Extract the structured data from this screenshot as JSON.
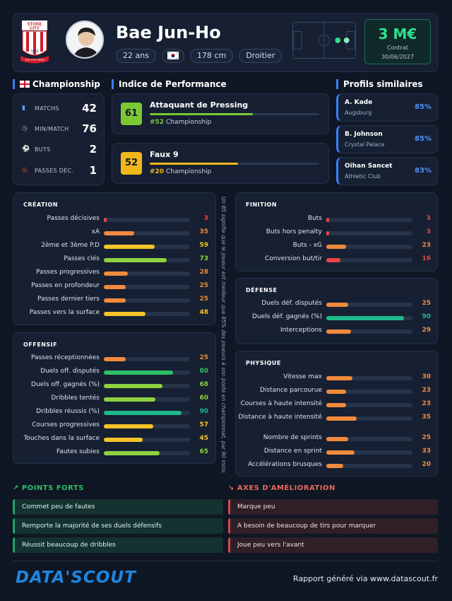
{
  "header": {
    "club_badge_text": "STOKE CITY",
    "club_badge_year": "1863",
    "club_badge_banner": "THE POTTERS",
    "player_name": "Bae Jun-Ho",
    "age": "22 ans",
    "nationality_flag": "south-korea-flag",
    "height": "178 cm",
    "foot": "Droitier",
    "market_value": "3 M€",
    "contract_label": "Contrat",
    "contract_date": "30/06/2027"
  },
  "league_stats": {
    "title": "Championship",
    "items": [
      {
        "icon": "shirt-icon",
        "label": "MATCHS",
        "value": "42"
      },
      {
        "icon": "clock-icon",
        "label": "MIN/MATCH",
        "value": "76"
      },
      {
        "icon": "ball-icon",
        "label": "BUTS",
        "value": "2"
      },
      {
        "icon": "target-icon",
        "label": "PASSES DÉC.",
        "value": "1"
      }
    ]
  },
  "performance": {
    "title": "Indice de Performance",
    "items": [
      {
        "score": "61",
        "title": "Attaquant de Pressing",
        "level": 0.61,
        "rank": "#52",
        "league": "Championship",
        "color": "#7cc734"
      },
      {
        "score": "52",
        "title": "Faux 9",
        "level": 0.52,
        "rank": "#20",
        "league": "Championship",
        "color": "#f2b81a"
      }
    ]
  },
  "similar": {
    "title": "Profils similaires",
    "items": [
      {
        "name": "A. Kade",
        "club": "Augsburg",
        "pct": "85%"
      },
      {
        "name": "B. Johnson",
        "club": "Crystal Palace",
        "pct": "85%"
      },
      {
        "name": "Oihan Sancet",
        "club": "Athletic Club",
        "pct": "83%"
      }
    ]
  },
  "creation": {
    "title": "CRÉATION",
    "items": [
      {
        "label": "Passes décisives",
        "value": "3"
      },
      {
        "label": "xA",
        "value": "35"
      },
      {
        "label": "2ème et 3ème P.D",
        "value": "59"
      },
      {
        "label": "Passes clés",
        "value": "73"
      },
      {
        "label": "Passes progressives",
        "value": "28"
      },
      {
        "label": "Passes en profondeur",
        "value": "25"
      },
      {
        "label": "Passes dernier tiers",
        "value": "25"
      },
      {
        "label": "Passes vers la surface",
        "value": "48"
      }
    ]
  },
  "offensif": {
    "title": "OFFENSIF",
    "items": [
      {
        "label": "Passes réceptionnées",
        "value": "25"
      },
      {
        "label": "Duels off. disputés",
        "value": "80"
      },
      {
        "label": "Duels off. gagnés (%)",
        "value": "68"
      },
      {
        "label": "Dribbles tentés",
        "value": "60"
      },
      {
        "label": "Dribbles réussis (%)",
        "value": "90"
      },
      {
        "label": "Courses progressives",
        "value": "57"
      },
      {
        "label": "Touches dans la surface",
        "value": "45"
      },
      {
        "label": "Fautes subies",
        "value": "65"
      }
    ]
  },
  "finition": {
    "title": "FINITION",
    "items": [
      {
        "label": "Buts",
        "value": "3"
      },
      {
        "label": "Buts hors penalty",
        "value": "3"
      },
      {
        "label": "Buts - xG",
        "value": "23"
      },
      {
        "label": "Conversion but/tir",
        "value": "16"
      }
    ]
  },
  "defense": {
    "title": "DÉFENSE",
    "items": [
      {
        "label": "Duels déf. disputés",
        "value": "25"
      },
      {
        "label": "Duels déf. gagnés (%)",
        "value": "90"
      },
      {
        "label": "Interceptions",
        "value": "29"
      }
    ]
  },
  "physique": {
    "title": "PHYSIQUE",
    "items": [
      {
        "label": "Vitesse max",
        "value": "30"
      },
      {
        "label": "Distance parcourue",
        "value": "23"
      },
      {
        "label": "Courses à haute intensité",
        "value": "23"
      },
      {
        "label": "Distance à haute intensité",
        "value": "35"
      },
      {
        "label": "Nombre de sprints",
        "value": "25"
      },
      {
        "label": "Distance en sprint",
        "value": "33"
      },
      {
        "label": "Accélérations brusques",
        "value": "20"
      }
    ]
  },
  "percentile_note": "Un 85 signifie que le joueur est meilleur que 85% des joueurs à son poste en championnat, par 90 mins",
  "strengths": {
    "title": "POINTS FORTS",
    "items": [
      "Commet peu de fautes",
      "Remporte la majorité de ses duels défensifs",
      "Réussit beaucoup de dribbles"
    ]
  },
  "improvements": {
    "title": "AXES D'AMÉLIORATION",
    "items": [
      "Marque peu",
      "A besoin de beaucoup de tirs pour marquer",
      "Joue peu vers l'avant"
    ]
  },
  "footer": {
    "logo": "DATA'SCOUT",
    "text": "Rapport généré via www.datascout.fr"
  },
  "colors": {
    "red": "#e84545",
    "orange": "#f08a3c",
    "yellow": "#f4c328",
    "lightgreen": "#8fd13f",
    "green": "#2fbe67",
    "teal": "#1fb88a"
  }
}
